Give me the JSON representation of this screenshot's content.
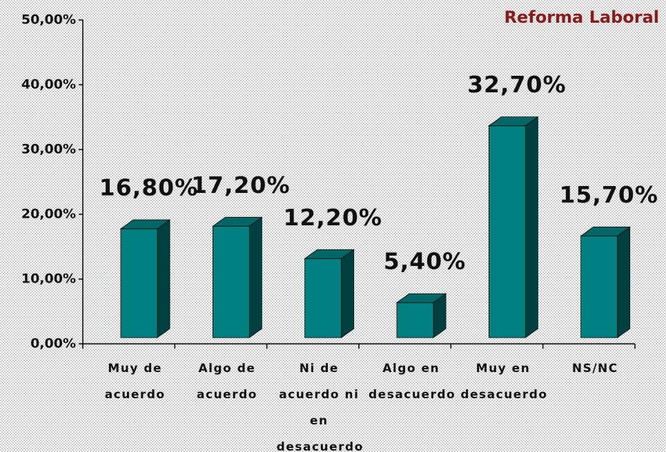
{
  "chart_data": {
    "type": "bar3d",
    "title": "Reforma Laboral",
    "categories": [
      "Muy de acuerdo",
      "Algo de acuerdo",
      "Ni de acuerdo ni en desacuerdo",
      "Algo en desacuerdo",
      "Muy en desacuerdo",
      "NS/NC"
    ],
    "values": [
      16.8,
      17.2,
      12.2,
      5.4,
      32.7,
      15.7
    ],
    "value_labels": [
      "16,80%",
      "17,20%",
      "12,20%",
      "5,40%",
      "32,70%",
      "15,70%"
    ],
    "color": "#008080",
    "ylim": [
      0,
      50
    ],
    "yticks": [
      {
        "value": 0,
        "label": "0,00%"
      },
      {
        "value": 10,
        "label": "10,00%"
      },
      {
        "value": 20,
        "label": "20,00%"
      },
      {
        "value": 30,
        "label": "30,00%"
      },
      {
        "value": 40,
        "label": "40,00%"
      },
      {
        "value": 50,
        "label": "50,00%"
      }
    ]
  }
}
